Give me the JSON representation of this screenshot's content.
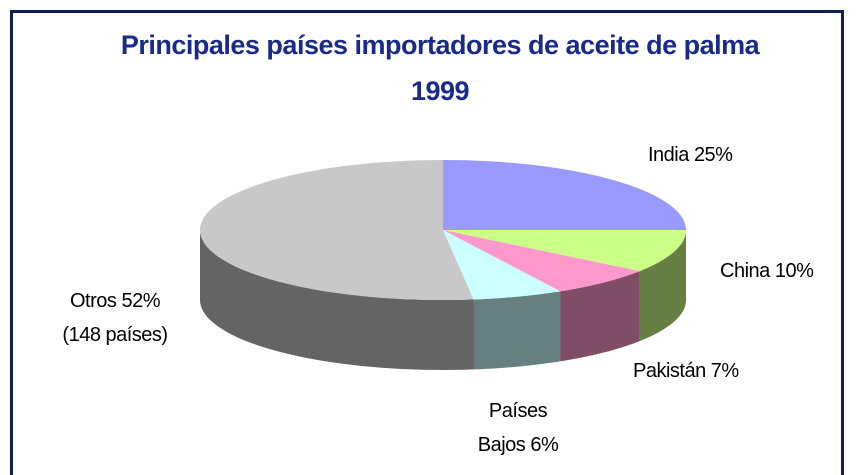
{
  "chart_data": {
    "type": "pie3d",
    "title": "Principales países importadores de aceite de palma 1999",
    "categories": [
      "India",
      "China",
      "Pakistán",
      "Países Bajos",
      "Otros"
    ],
    "values": [
      25,
      10,
      7,
      6,
      52
    ],
    "value_labels": [
      "25%",
      "10%",
      "7%",
      "6%",
      "52%"
    ],
    "colors": [
      "#9999ff",
      "#ccff88",
      "#ff99cc",
      "#ccffff",
      "#c8c8c8"
    ],
    "annotations": [
      "(148 países)"
    ]
  }
}
